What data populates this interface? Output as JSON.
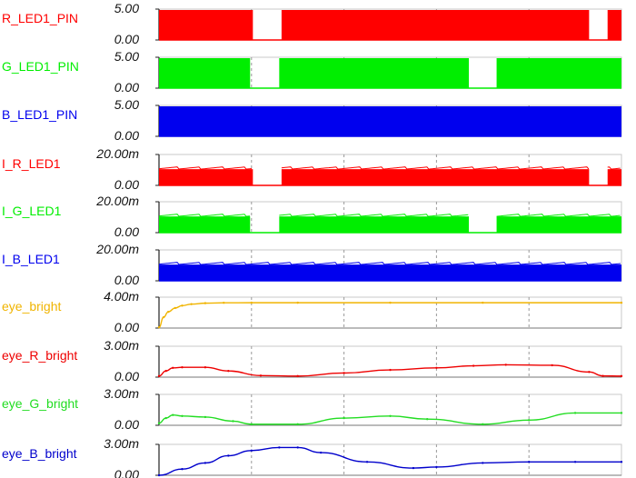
{
  "chart_data": {
    "type": "line",
    "title": "",
    "xlabel": "",
    "grid": true,
    "x_range": [
      0,
      1
    ],
    "panels": [
      {
        "name": "R_LED1_PIN",
        "color": "#ff0000",
        "kind": "digital",
        "ticks": [
          "5.00",
          "0.00"
        ],
        "ylim": [
          0,
          5
        ],
        "on": [
          [
            0.0,
            0.203
          ],
          [
            0.265,
            0.93
          ],
          [
            0.97,
            1.0
          ]
        ]
      },
      {
        "name": "G_LED1_PIN",
        "color": "#00ee00",
        "kind": "digital",
        "ticks": [
          "5.00",
          "0.00"
        ],
        "ylim": [
          0,
          5
        ],
        "on": [
          [
            0.0,
            0.197
          ],
          [
            0.26,
            0.67
          ],
          [
            0.73,
            1.0
          ]
        ]
      },
      {
        "name": "B_LED1_PIN",
        "color": "#0000ee",
        "kind": "digital",
        "ticks": [
          "5.00",
          "0.00"
        ],
        "ylim": [
          0,
          5
        ],
        "on": [
          [
            0.0,
            1.0
          ]
        ]
      },
      {
        "name": "I_R_LED1",
        "color": "#ff0000",
        "kind": "current",
        "ticks": [
          "20.00m",
          "0.00"
        ],
        "ylim": [
          0,
          0.02
        ],
        "level": 0.0105,
        "on": [
          [
            0.0,
            0.203
          ],
          [
            0.265,
            0.93
          ],
          [
            0.97,
            1.0
          ]
        ]
      },
      {
        "name": "I_G_LED1",
        "color": "#00ee00",
        "kind": "current",
        "ticks": [
          "20.00m",
          "0.00"
        ],
        "ylim": [
          0,
          0.02
        ],
        "level": 0.0105,
        "on": [
          [
            0.0,
            0.197
          ],
          [
            0.26,
            0.67
          ],
          [
            0.73,
            1.0
          ]
        ]
      },
      {
        "name": "I_B_LED1",
        "color": "#0000ee",
        "kind": "current",
        "ticks": [
          "20.00m",
          "0.00"
        ],
        "ylim": [
          0,
          0.02
        ],
        "level": 0.0105,
        "on": [
          [
            0.0,
            1.0
          ]
        ]
      },
      {
        "name": "eye_bright",
        "color": "#f0b400",
        "kind": "analog",
        "ticks": [
          "4.00m",
          "0.00"
        ],
        "ylim": [
          0,
          0.004
        ],
        "x": [
          0,
          0.01,
          0.02,
          0.035,
          0.05,
          0.07,
          0.1,
          0.14,
          0.2,
          0.3,
          0.5,
          0.7,
          1.0
        ],
        "y": [
          0.0001,
          0.0014,
          0.0021,
          0.0026,
          0.0029,
          0.0031,
          0.00322,
          0.00327,
          0.00328,
          0.00328,
          0.00328,
          0.00328,
          0.00328
        ]
      },
      {
        "name": "eye_R_bright",
        "color": "#ee0000",
        "kind": "analog",
        "ticks": [
          "3.00m",
          "0.00"
        ],
        "ylim": [
          0,
          0.003
        ],
        "x": [
          0,
          0.015,
          0.03,
          0.05,
          0.1,
          0.15,
          0.22,
          0.3,
          0.4,
          0.5,
          0.6,
          0.68,
          0.75,
          0.85,
          0.93,
          0.96,
          1.0
        ],
        "y": [
          0.0001,
          0.0006,
          0.0009,
          0.00095,
          0.00095,
          0.0006,
          0.00015,
          0.0001,
          0.0004,
          0.0007,
          0.0009,
          0.0011,
          0.0012,
          0.00115,
          0.0005,
          0.00012,
          0.0001
        ]
      },
      {
        "name": "eye_G_bright",
        "color": "#22dd22",
        "kind": "analog",
        "ticks": [
          "3.00m",
          "0.00"
        ],
        "ylim": [
          0,
          0.003
        ],
        "x": [
          0,
          0.015,
          0.03,
          0.05,
          0.1,
          0.16,
          0.2,
          0.3,
          0.4,
          0.5,
          0.58,
          0.7,
          0.8,
          0.9,
          1.0
        ],
        "y": [
          0.0002,
          0.0007,
          0.001,
          0.0009,
          0.0008,
          0.0004,
          0.0001,
          0.0001,
          0.0007,
          0.0009,
          0.0006,
          0.0001,
          0.0005,
          0.0012,
          0.0012
        ]
      },
      {
        "name": "eye_B_bright",
        "color": "#0000cc",
        "kind": "analog",
        "ticks": [
          "3.00m",
          "0.00"
        ],
        "ylim": [
          0,
          0.003
        ],
        "x": [
          0,
          0.05,
          0.1,
          0.15,
          0.2,
          0.26,
          0.3,
          0.35,
          0.45,
          0.55,
          0.6,
          0.7,
          0.8,
          0.9,
          1.0
        ],
        "y": [
          0.0,
          0.0006,
          0.0012,
          0.0019,
          0.0024,
          0.0027,
          0.0027,
          0.0022,
          0.0013,
          0.0007,
          0.0008,
          0.0012,
          0.0013,
          0.0013,
          0.0013
        ]
      }
    ]
  }
}
